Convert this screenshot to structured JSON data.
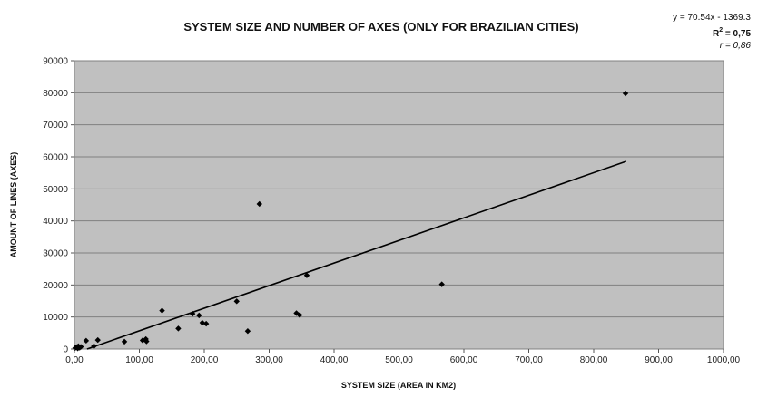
{
  "chart_data": {
    "type": "scatter",
    "title": "SYSTEM SIZE AND NUMBER OF AXES (ONLY FOR BRAZILIAN CITIES)",
    "xlabel": "SYSTEM SIZE (AREA IN KM2)",
    "ylabel": "AMOUNT OF LINES (AXES)",
    "xlim": [
      0,
      1000
    ],
    "ylim": [
      0,
      90000
    ],
    "x_ticks": [
      "0,00",
      "100,00",
      "200,00",
      "300,00",
      "400,00",
      "500,00",
      "600,00",
      "700,00",
      "800,00",
      "900,00",
      "1000,00"
    ],
    "y_ticks": [
      "0",
      "10000",
      "20000",
      "30000",
      "40000",
      "50000",
      "60000",
      "70000",
      "80000",
      "90000"
    ],
    "grid": "horizontal",
    "background": "#c0c0c0",
    "marker": "diamond",
    "marker_color": "#000000",
    "line_color": "#000000",
    "points": [
      {
        "x": 1,
        "y": 300
      },
      {
        "x": 3,
        "y": 600
      },
      {
        "x": 5,
        "y": 200
      },
      {
        "x": 6,
        "y": 900
      },
      {
        "x": 8,
        "y": 400
      },
      {
        "x": 10,
        "y": 700
      },
      {
        "x": 18,
        "y": 2600
      },
      {
        "x": 30,
        "y": 900
      },
      {
        "x": 36,
        "y": 2800
      },
      {
        "x": 77,
        "y": 2300
      },
      {
        "x": 105,
        "y": 2700
      },
      {
        "x": 110,
        "y": 3100
      },
      {
        "x": 111,
        "y": 2400
      },
      {
        "x": 135,
        "y": 12000
      },
      {
        "x": 160,
        "y": 6400
      },
      {
        "x": 182,
        "y": 11000
      },
      {
        "x": 192,
        "y": 10500
      },
      {
        "x": 197,
        "y": 8200
      },
      {
        "x": 203,
        "y": 7900
      },
      {
        "x": 250,
        "y": 14900
      },
      {
        "x": 267,
        "y": 5600
      },
      {
        "x": 285,
        "y": 45300
      },
      {
        "x": 342,
        "y": 11200
      },
      {
        "x": 347,
        "y": 10600
      },
      {
        "x": 358,
        "y": 23000
      },
      {
        "x": 566,
        "y": 20200
      },
      {
        "x": 849,
        "y": 79800
      }
    ],
    "trendline": {
      "type": "linear",
      "slope": 70.54,
      "intercept": -1369.3,
      "x_range": [
        0,
        850
      ]
    },
    "annotations": {
      "equation": "y = 70.54x - 1369.3",
      "r2_label": "R",
      "r2_sup": "2",
      "r2_value": " = 0,75",
      "r_value": "r = 0,86"
    }
  }
}
